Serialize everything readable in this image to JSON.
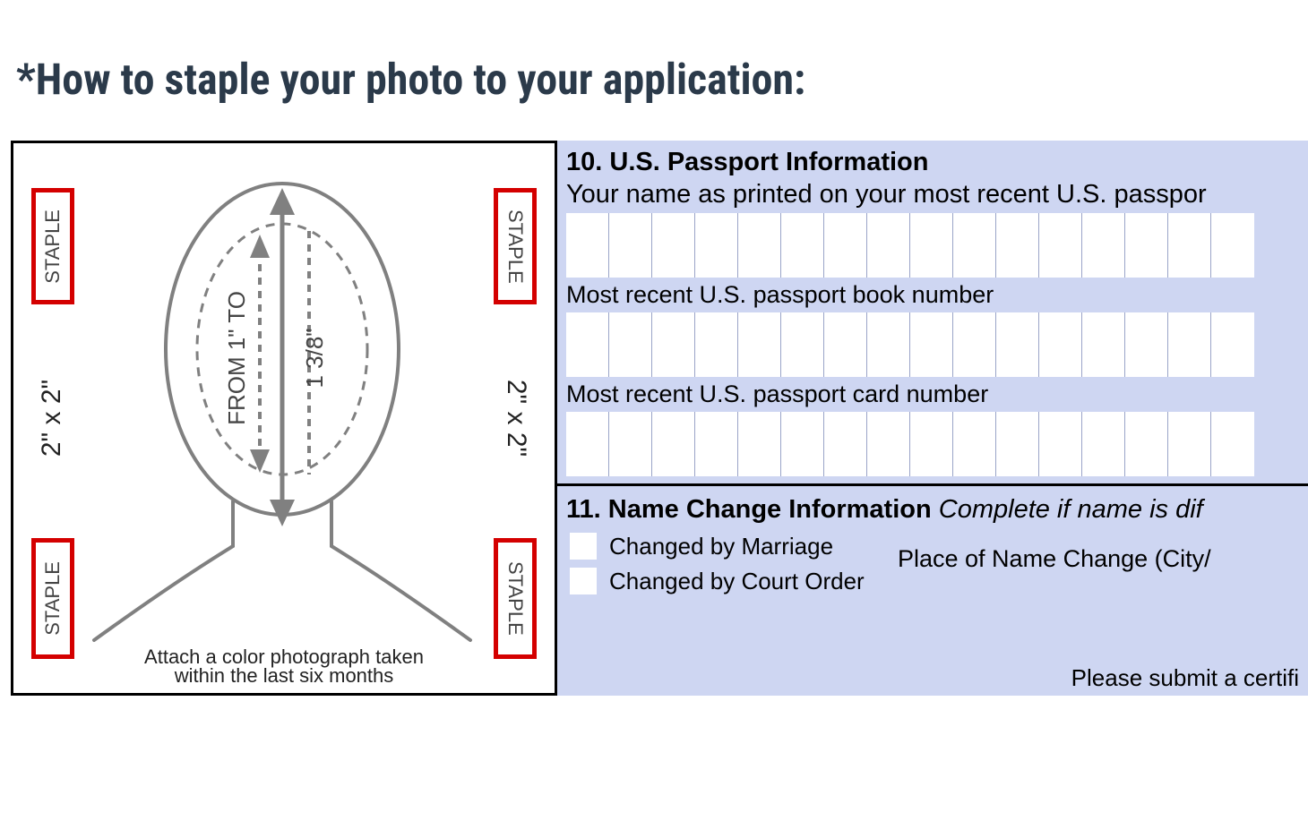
{
  "heading": "*How to staple your photo to your application:",
  "photo_box": {
    "staple_label": "STAPLE",
    "dimension_label_left": "2\" x 2\"",
    "dimension_label_right": "2\" x 2\"",
    "from_to_label": "FROM 1\" TO",
    "one_three_eighths": "1 3/8\"",
    "caption_line1": "Attach a color photograph taken",
    "caption_line2": "within the last six months",
    "staple_border_color": "#d40000",
    "outline_color": "#808080",
    "dash_color": "#808080"
  },
  "form": {
    "bg_color": "#ced6f2",
    "section10_title": "10. U.S. Passport Information",
    "section10_sub": "Your name as printed on your most recent U.S. passpor",
    "book_number_label": "Most recent U.S. passport book number",
    "card_number_label": "Most recent U.S. passport card number",
    "section11_title": "11. Name Change Information",
    "section11_sub": "Complete if name is dif",
    "marriage_label": "Changed by Marriage",
    "court_label": "Changed by Court Order",
    "place_label": "Place of Name Change (City/",
    "submit_note": "Please submit a certifi",
    "name_cells": 16,
    "book_cells": 16,
    "card_cells": 16
  }
}
